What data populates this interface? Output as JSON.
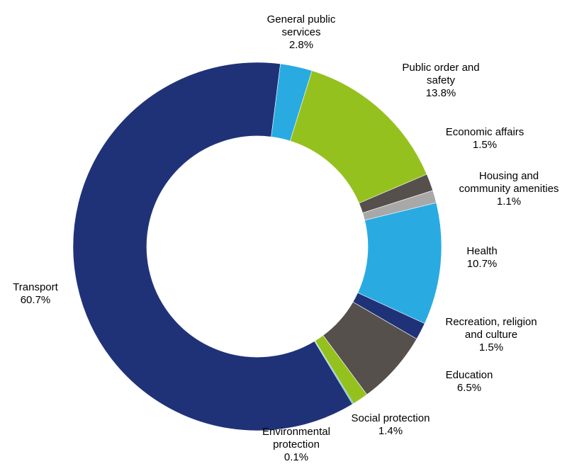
{
  "chart_data": {
    "type": "pie",
    "donut": true,
    "title": "",
    "start_category": "General public services",
    "direction": "clockwise",
    "slices": [
      {
        "label_lines": [
          "General public",
          "services"
        ],
        "category": "General public services",
        "value": 2.8,
        "value_label": "2.8%",
        "color": "#29abe2"
      },
      {
        "label_lines": [
          "Public order and",
          "safety"
        ],
        "category": "Public order and safety",
        "value": 13.8,
        "value_label": "13.8%",
        "color": "#95c11f"
      },
      {
        "label_lines": [
          "Economic affairs"
        ],
        "category": "Economic affairs",
        "value": 1.5,
        "value_label": "1.5%",
        "color": "#55504b"
      },
      {
        "label_lines": [
          "Housing and",
          "community amenities"
        ],
        "category": "Housing and community amenities",
        "value": 1.1,
        "value_label": "1.1%",
        "color": "#a8a8a8"
      },
      {
        "label_lines": [
          "Health"
        ],
        "category": "Health",
        "value": 10.7,
        "value_label": "10.7%",
        "color": "#29abe2"
      },
      {
        "label_lines": [
          "Recreation, religion",
          "and culture"
        ],
        "category": "Recreation, religion and culture",
        "value": 1.5,
        "value_label": "1.5%",
        "color": "#1f3278"
      },
      {
        "label_lines": [
          "Education"
        ],
        "category": "Education",
        "value": 6.5,
        "value_label": "6.5%",
        "color": "#55504b"
      },
      {
        "label_lines": [
          "Social protection"
        ],
        "category": "Social protection",
        "value": 1.4,
        "value_label": "1.4%",
        "color": "#95c11f"
      },
      {
        "label_lines": [
          "Environmental",
          "protection"
        ],
        "category": "Environmental protection",
        "value": 0.1,
        "value_label": "0.1%",
        "color": "#29abe2"
      },
      {
        "label_lines": [
          "Transport"
        ],
        "category": "Transport",
        "value": 60.7,
        "value_label": "60.7%",
        "color": "#1f3278"
      }
    ]
  }
}
